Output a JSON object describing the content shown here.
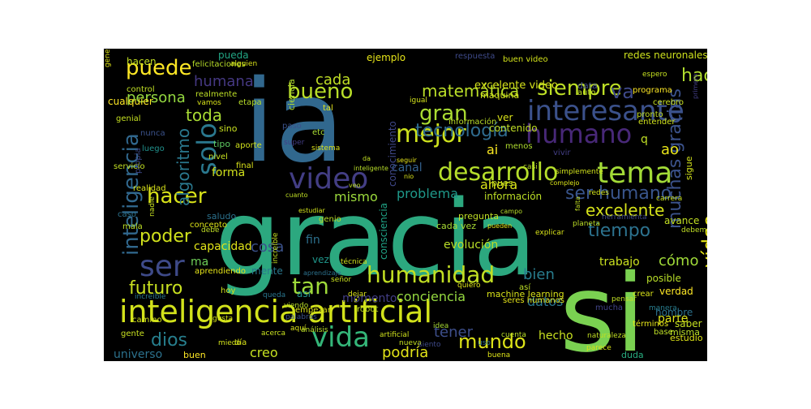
{
  "palette": [
    "#440154",
    "#472d7b",
    "#3b528b",
    "#2c728e",
    "#21918c",
    "#28ae80",
    "#5ec962",
    "#addc30",
    "#fde725"
  ],
  "words": [
    {
      "text": "gracia",
      "color": "#2ca87f"
    },
    {
      "text": "ia",
      "color": "#31688e"
    },
    {
      "text": "si",
      "color": "#7ad151"
    },
    {
      "text": "inteligencia artificial",
      "color": "#d2e21b"
    },
    {
      "text": "interesante",
      "color": "#3b518b"
    },
    {
      "text": "humano",
      "color": "#482878"
    },
    {
      "text": "video",
      "color": "#433e85"
    },
    {
      "text": "desarrollo",
      "color": "#b5de2b"
    },
    {
      "text": "tema",
      "color": "#a2da37"
    },
    {
      "text": "humanidad",
      "color": "#c2df23"
    },
    {
      "text": "ser",
      "color": "#3e4a89"
    },
    {
      "text": "vida",
      "color": "#34b679"
    },
    {
      "text": "mejor",
      "color": "#cde11d"
    },
    {
      "text": "solo",
      "color": "#2a788e"
    },
    {
      "text": "puede",
      "color": "#fde725"
    },
    {
      "text": "hacer",
      "color": "#d8e219"
    },
    {
      "text": "siempre",
      "color": "#bddf26"
    },
    {
      "text": "bueno",
      "color": "#b8de29"
    },
    {
      "text": "vídeo",
      "color": "#e5e419"
    },
    {
      "text": "futuro",
      "color": "#c8e020"
    },
    {
      "text": "gran",
      "color": "#aadc32"
    },
    {
      "text": "inteligencia",
      "color": "#31688e"
    },
    {
      "text": "tecnología",
      "color": "#2f6b8e"
    },
    {
      "text": "muchas gracias",
      "color": "#3b528b"
    },
    {
      "text": "mundo",
      "color": "#dde318"
    },
    {
      "text": "ser humano",
      "color": "#39558c"
    },
    {
      "text": "poder",
      "color": "#d0e11c"
    },
    {
      "text": "tan",
      "color": "#9fda3a"
    },
    {
      "text": "algoritmo",
      "color": "#2a788e"
    },
    {
      "text": "tiempo",
      "color": "#2c728e"
    },
    {
      "text": "dios",
      "color": "#277f8e"
    },
    {
      "text": "matemática",
      "color": "#bade28"
    },
    {
      "text": "toda",
      "color": "#a8db34"
    },
    {
      "text": "va",
      "color": "#3e4989"
    },
    {
      "text": "hace",
      "color": "#b0dd2f"
    },
    {
      "text": "excelente",
      "color": "#d5e21a"
    },
    {
      "text": "cada",
      "color": "#c0df25"
    },
    {
      "text": "tener",
      "color": "#3d4e8a"
    },
    {
      "text": "bien",
      "color": "#287d8e"
    },
    {
      "text": "persona",
      "color": "#94d840"
    },
    {
      "text": "humana",
      "color": "#453882"
    },
    {
      "text": "mismo",
      "color": "#9bd93c"
    },
    {
      "text": "canal",
      "color": "#34618d"
    },
    {
      "text": "cosa",
      "color": "#3b528b"
    },
    {
      "text": "problema",
      "color": "#1f998a"
    },
    {
      "text": "conciencia",
      "color": "#95d840"
    },
    {
      "text": "cómo",
      "color": "#a0da39"
    },
    {
      "text": "podría",
      "color": "#e2e418"
    },
    {
      "text": "creo",
      "color": "#c5e021"
    },
    {
      "text": "ahora",
      "color": "#dae319"
    },
    {
      "text": "ao",
      "color": "#e7e419"
    },
    {
      "text": "q",
      "color": "#c0df25"
    },
    {
      "text": "ai",
      "color": "#f8e621"
    },
    {
      "text": "forma",
      "color": "#d0e11c"
    },
    {
      "text": "trabajo",
      "color": "#cae11f"
    },
    {
      "text": "datos",
      "color": "#2a768e"
    },
    {
      "text": "momento",
      "color": "#433e85"
    },
    {
      "text": "parte",
      "color": "#dde318"
    },
    {
      "text": "evolución",
      "color": "#bade28"
    },
    {
      "text": "hecho",
      "color": "#c8e020"
    },
    {
      "text": "universo",
      "color": "#2c728e"
    },
    {
      "text": "capacidad",
      "color": "#e0e318"
    },
    {
      "text": "fin",
      "color": "#2d718e"
    },
    {
      "text": "vez",
      "color": "#1f968b"
    },
    {
      "text": "mente",
      "color": "#2a788e"
    },
    {
      "text": "así",
      "color": "#21918c"
    },
    {
      "text": "ma",
      "color": "#6ece58"
    },
    {
      "text": "ejemplo",
      "color": "#e5e419"
    },
    {
      "text": "conocimiento",
      "color": "#3f4788"
    },
    {
      "text": "consciencia",
      "color": "#20a386"
    },
    {
      "text": "redes neuronales",
      "color": "#cde11d"
    },
    {
      "text": "excelente video",
      "color": "#d5e21a"
    },
    {
      "text": "avance",
      "color": "#c2df23"
    },
    {
      "text": "posible",
      "color": "#b8de29"
    },
    {
      "text": "verdad",
      "color": "#fde725"
    },
    {
      "text": "información",
      "color": "#bddf26"
    },
    {
      "text": "hombre",
      "color": "#2c728e"
    },
    {
      "text": "respuesta",
      "color": "#3e4a89"
    },
    {
      "text": "buen video",
      "color": "#d2e21b"
    },
    {
      "text": "contenido",
      "color": "#c0df25"
    },
    {
      "text": "ver",
      "color": "#dae319"
    },
    {
      "text": "pueda",
      "color": "#22a785"
    },
    {
      "text": "hacen",
      "color": "#c2df23"
    },
    {
      "text": "cualquier",
      "color": "#fde725"
    },
    {
      "text": "realmente",
      "color": "#bddf26"
    },
    {
      "text": "nunca",
      "color": "#3b528b"
    },
    {
      "text": "sino",
      "color": "#c8e020"
    },
    {
      "text": "luego",
      "color": "#21918c"
    },
    {
      "text": "tipo",
      "color": "#5ec962"
    },
    {
      "text": "saludo",
      "color": "#2c728e"
    },
    {
      "text": "ciencia",
      "color": "#b0dd2f"
    },
    {
      "text": "máquina",
      "color": "#d0e11c"
    },
    {
      "text": "saber",
      "color": "#c5e021"
    },
    {
      "text": "buen",
      "color": "#fde725"
    },
    {
      "text": "duda",
      "color": "#28ae80"
    },
    {
      "text": "misma",
      "color": "#b8de29"
    },
    {
      "text": "cada vez",
      "color": "#a8db34"
    },
    {
      "text": "pregunta",
      "color": "#c0df25"
    },
    {
      "text": "machine learning",
      "color": "#d8e219"
    },
    {
      "text": "seres humanos",
      "color": "#e5e419"
    },
    {
      "text": "robot",
      "color": "#c2df23"
    },
    {
      "text": "hoy",
      "color": "#d0e11c"
    },
    {
      "text": "empezar",
      "color": "#dde318"
    },
    {
      "text": "genio",
      "color": "#bade28"
    },
    {
      "text": "gente",
      "color": "#c8e020"
    },
    {
      "text": "camino",
      "color": "#d2e21b"
    },
    {
      "text": "día",
      "color": "#dae319"
    },
    {
      "text": "pues",
      "color": "#c5e021"
    },
    {
      "text": "menos",
      "color": "#b0dd2f"
    },
    {
      "text": "vivir",
      "color": "#433e85"
    },
    {
      "text": "crear",
      "color": "#d8e219"
    },
    {
      "text": "estudio",
      "color": "#dde318"
    },
    {
      "text": "manera",
      "color": "#287d8e"
    },
    {
      "text": "mucha",
      "color": "#414487"
    },
    {
      "text": "así",
      "color": "#bddf26"
    },
    {
      "text": "auto",
      "color": "#c0df25"
    },
    {
      "text": "data",
      "color": "#3e4a89"
    },
    {
      "text": "pronto",
      "color": "#c2df23"
    },
    {
      "text": "cerebro",
      "color": "#c8e020"
    },
    {
      "text": "programa",
      "color": "#fde725"
    },
    {
      "text": "sigue",
      "color": "#d2e21b"
    },
    {
      "text": "entender",
      "color": "#d0e11c"
    },
    {
      "text": "felicitaciones",
      "color": "#b8de29"
    },
    {
      "text": "alguien",
      "color": "#dae319"
    },
    {
      "text": "tal",
      "color": "#e5e419"
    },
    {
      "text": "vamos",
      "color": "#d8e219"
    },
    {
      "text": "genial",
      "color": "#c5e021"
    },
    {
      "text": "etc",
      "color": "#a8db34"
    },
    {
      "text": "sistema",
      "color": "#dde318"
    },
    {
      "text": "paso",
      "color": "#3b528b"
    },
    {
      "text": "super",
      "color": "#433e85"
    },
    {
      "text": "información",
      "color": "#bade28"
    },
    {
      "text": "igual",
      "color": "#d2e21b"
    },
    {
      "text": "control",
      "color": "#c0df25"
    },
    {
      "text": "etapa",
      "color": "#b8de29"
    },
    {
      "text": "nivel",
      "color": "#c8e020"
    },
    {
      "text": "aporte",
      "color": "#d0e11c"
    },
    {
      "text": "final",
      "color": "#dae319"
    },
    {
      "text": "propia",
      "color": "#3e4989"
    },
    {
      "text": "servicio",
      "color": "#c2df23"
    },
    {
      "text": "caso",
      "color": "#2c728e"
    },
    {
      "text": "concepto",
      "color": "#dde318"
    },
    {
      "text": "nadie",
      "color": "#c5e021"
    },
    {
      "text": "mala",
      "color": "#bddf26"
    },
    {
      "text": "realidad",
      "color": "#d8e219"
    },
    {
      "text": "aprendiendo",
      "color": "#e5e419"
    },
    {
      "text": "increíble",
      "color": "#2a788e"
    },
    {
      "text": "debe",
      "color": "#c0df25"
    },
    {
      "text": "miedo",
      "color": "#d2e21b"
    },
    {
      "text": "acerca",
      "color": "#c8e020"
    },
    {
      "text": "aquí",
      "color": "#dae319"
    },
    {
      "text": "análisis",
      "color": "#bade28"
    },
    {
      "text": "artificial",
      "color": "#d0e11c"
    },
    {
      "text": "nueva",
      "color": "#c5e021"
    },
    {
      "text": "siento",
      "color": "#3e4a89"
    },
    {
      "text": "idea",
      "color": "#a8db34"
    },
    {
      "text": "buena",
      "color": "#dde318"
    },
    {
      "text": "uso",
      "color": "#2c728e"
    },
    {
      "text": "cuenta",
      "color": "#b8de29"
    },
    {
      "text": "parece",
      "color": "#d8e219"
    },
    {
      "text": "naturaleza",
      "color": "#c2df23"
    },
    {
      "text": "términos",
      "color": "#e5e419"
    },
    {
      "text": "base",
      "color": "#bddf26"
    },
    {
      "text": "pensar",
      "color": "#c0df25"
    },
    {
      "text": "gusta",
      "color": "#d2e21b"
    },
    {
      "text": "queda",
      "color": "#2a768e"
    },
    {
      "text": "señor",
      "color": "#c8e020"
    },
    {
      "text": "palabras",
      "color": "#3b528b"
    },
    {
      "text": "dejar",
      "color": "#dae319"
    },
    {
      "text": "viendo",
      "color": "#bade28"
    },
    {
      "text": "técnica",
      "color": "#d0e11c"
    },
    {
      "text": "aprendizaje",
      "color": "#2c728e"
    },
    {
      "text": "increíble",
      "color": "#c5e021"
    },
    {
      "text": "quiero",
      "color": "#dde318"
    },
    {
      "text": "campo",
      "color": "#b8de29"
    },
    {
      "text": "pueden",
      "color": "#e5e419"
    },
    {
      "text": "explicar",
      "color": "#d8e219"
    },
    {
      "text": "falta",
      "color": "#c2df23"
    },
    {
      "text": "planeta",
      "color": "#bddf26"
    },
    {
      "text": "herramienta",
      "color": "#3e4989"
    },
    {
      "text": "debemos",
      "color": "#c0df25"
    },
    {
      "text": "redes",
      "color": "#d2e21b"
    },
    {
      "text": "carrera",
      "color": "#c8e020"
    },
    {
      "text": "complejo",
      "color": "#dae319"
    },
    {
      "text": "casi",
      "color": "#bade28"
    },
    {
      "text": "simplemente",
      "color": "#d0e11c"
    },
    {
      "text": "primero",
      "color": "#433e85"
    },
    {
      "text": "espero",
      "color": "#c5e021"
    },
    {
      "text": "general",
      "color": "#dde318"
    },
    {
      "text": "inteligente",
      "color": "#b8de29"
    },
    {
      "text": "seguir",
      "color": "#e5e419"
    },
    {
      "text": "nio",
      "color": "#d8e219"
    },
    {
      "text": "da",
      "color": "#c2df23"
    },
    {
      "text": "veo",
      "color": "#bddf26"
    },
    {
      "text": "cuanto",
      "color": "#c0df25"
    },
    {
      "text": "estudiar",
      "color": "#d2e21b"
    }
  ]
}
